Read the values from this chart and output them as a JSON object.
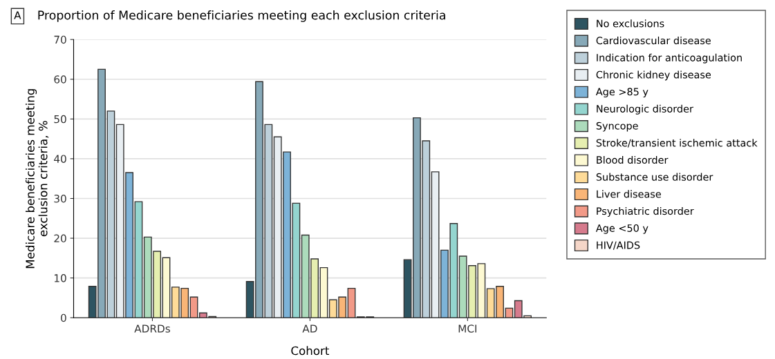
{
  "chart_data": {
    "type": "bar",
    "title": "Proportion of Medicare beneficiaries meeting each exclusion criteria",
    "annotations": [
      "A"
    ],
    "xlabel": "Cohort",
    "ylabel": "Medicare beneficiaries meeting\nexclusion criteria, %",
    "categories": [
      "ADRDs",
      "AD",
      "MCI"
    ],
    "series": [
      {
        "name": "No exclusions",
        "color": "#2d5461",
        "values": [
          7.9,
          9.1,
          14.6
        ]
      },
      {
        "name": "Cardiovascular disease",
        "color": "#87a9b8",
        "values": [
          62.5,
          59.4,
          50.3
        ]
      },
      {
        "name": "Indication for anticoagulation",
        "color": "#bdd0da",
        "values": [
          52,
          48.6,
          44.5
        ]
      },
      {
        "name": "Chronic kidney disease",
        "color": "#e8eef2",
        "values": [
          48.6,
          45.5,
          36.7
        ]
      },
      {
        "name": "Age >85 y",
        "color": "#7db3d8",
        "values": [
          36.5,
          41.7,
          17.0
        ]
      },
      {
        "name": "Neurologic disorder",
        "color": "#94d5cf",
        "values": [
          29.2,
          28.8,
          23.7
        ]
      },
      {
        "name": "Syncope",
        "color": "#acdbbc",
        "values": [
          20.3,
          20.8,
          15.5
        ]
      },
      {
        "name": "Stroke/transient ischemic attack",
        "color": "#e6efb0",
        "values": [
          16.7,
          14.8,
          13.1
        ]
      },
      {
        "name": "Blood disorder",
        "color": "#fdf9d2",
        "values": [
          15.1,
          12.6,
          13.6
        ]
      },
      {
        "name": "Substance use disorder",
        "color": "#fedb98",
        "values": [
          7.7,
          4.5,
          7.3
        ]
      },
      {
        "name": "Liver disease",
        "color": "#f9b577",
        "values": [
          7.4,
          5.2,
          7.9
        ]
      },
      {
        "name": "Psychiatric disorder",
        "color": "#f29a88",
        "values": [
          5.2,
          7.4,
          2.4
        ]
      },
      {
        "name": "Age <50 y",
        "color": "#d67b8d",
        "values": [
          1.2,
          0.2,
          4.3
        ]
      },
      {
        "name": "HIV/AIDS",
        "color": "#f5d6c8",
        "values": [
          0.3,
          0.2,
          0.5
        ]
      }
    ],
    "ylim": [
      0,
      70
    ],
    "yticks": [
      0,
      10,
      20,
      30,
      40,
      50,
      60,
      70
    ],
    "grid": "y",
    "legend": "right"
  }
}
